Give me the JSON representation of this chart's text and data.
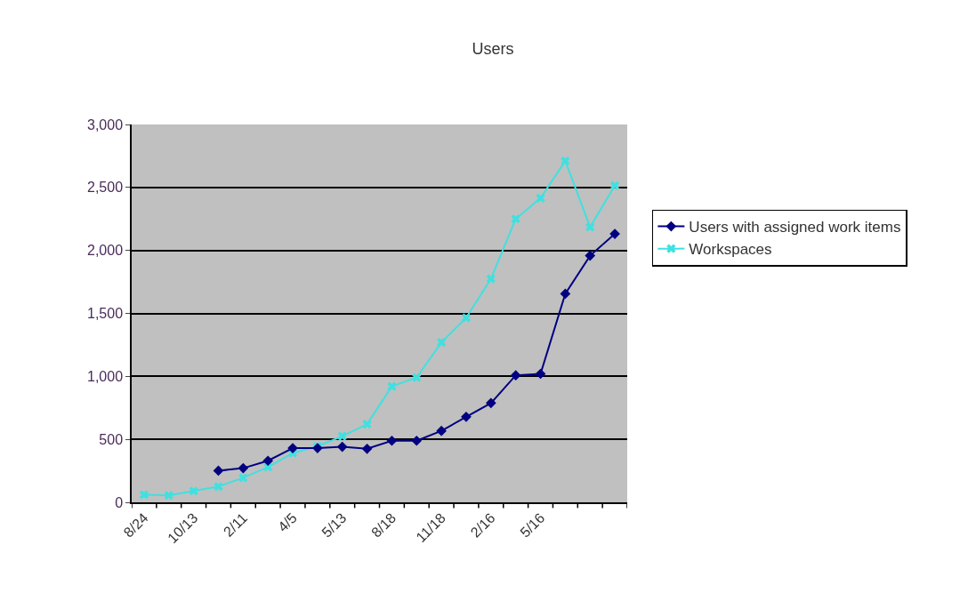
{
  "chart_data": {
    "type": "line",
    "title": "Users",
    "categories": [
      "8/24",
      null,
      "10/13",
      null,
      "2/11",
      null,
      "4/5",
      null,
      "5/13",
      null,
      "8/18",
      null,
      "11/18",
      null,
      "2/16",
      null,
      "5/16",
      null,
      null,
      null
    ],
    "series": [
      {
        "name": "Users with assigned work items",
        "color": "#000080",
        "marker": "diamond",
        "values": [
          null,
          null,
          null,
          251,
          271,
          330,
          430,
          430,
          441,
          425,
          489,
          489,
          567,
          679,
          788,
          1008,
          1020,
          1656,
          1958,
          2131
        ]
      },
      {
        "name": "Workspaces",
        "color": "#40e0e0",
        "marker": "cross",
        "values": [
          60,
          55,
          90,
          125,
          195,
          280,
          390,
          445,
          525,
          620,
          920,
          990,
          1270,
          1465,
          1775,
          2250,
          2415,
          2710,
          2185,
          2515
        ]
      }
    ],
    "ylim": [
      0,
      3000
    ],
    "yticks": [
      {
        "value": 0,
        "label": "0"
      },
      {
        "value": 500,
        "label": "500"
      },
      {
        "value": 1000,
        "label": "1,000"
      },
      {
        "value": 1500,
        "label": "1,500"
      },
      {
        "value": 2000,
        "label": "2,000"
      },
      {
        "value": 2500,
        "label": "2,500"
      },
      {
        "value": 3000,
        "label": "3,000"
      }
    ],
    "grid": "y",
    "legend": "right",
    "line_style": "solid"
  }
}
